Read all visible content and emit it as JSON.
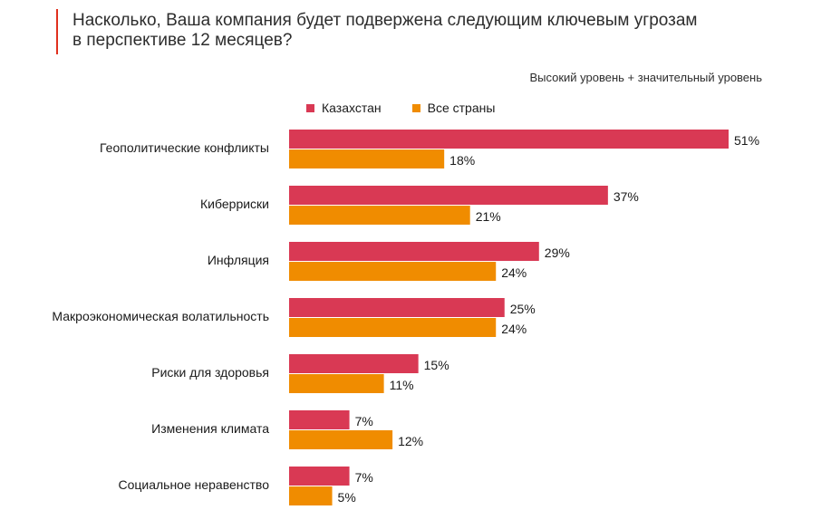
{
  "title_line1": "Насколько, Ваша компания будет подвержена следующим ключевым угрозам",
  "title_line2": "в перспективе 12 месяцев?",
  "subtitle": "Высокий уровень + значительный уровень",
  "colors": {
    "kazakhstan": "#d93954",
    "all_countries": "#f08c00",
    "accent": "#e0301e"
  },
  "chart_data": {
    "type": "bar",
    "orientation": "horizontal",
    "categories": [
      "Геополитические конфликты",
      "Киберриски",
      "Инфляция",
      "Макроэкономическая волатильность",
      "Риски для здоровья",
      "Изменения климата",
      "Социальное неравенство"
    ],
    "series": [
      {
        "name": "Казахстан",
        "values": [
          51,
          37,
          29,
          25,
          15,
          7,
          7
        ],
        "labels": [
          "51%",
          "37%",
          "29%",
          "25%",
          "15%",
          "7%",
          "7%"
        ]
      },
      {
        "name": "Все страны",
        "values": [
          18,
          21,
          24,
          24,
          11,
          12,
          5
        ],
        "labels": [
          "18%",
          "21%",
          "24%",
          "24%",
          "11%",
          "12%",
          "5%"
        ]
      }
    ],
    "legend": "top",
    "grid": false
  }
}
